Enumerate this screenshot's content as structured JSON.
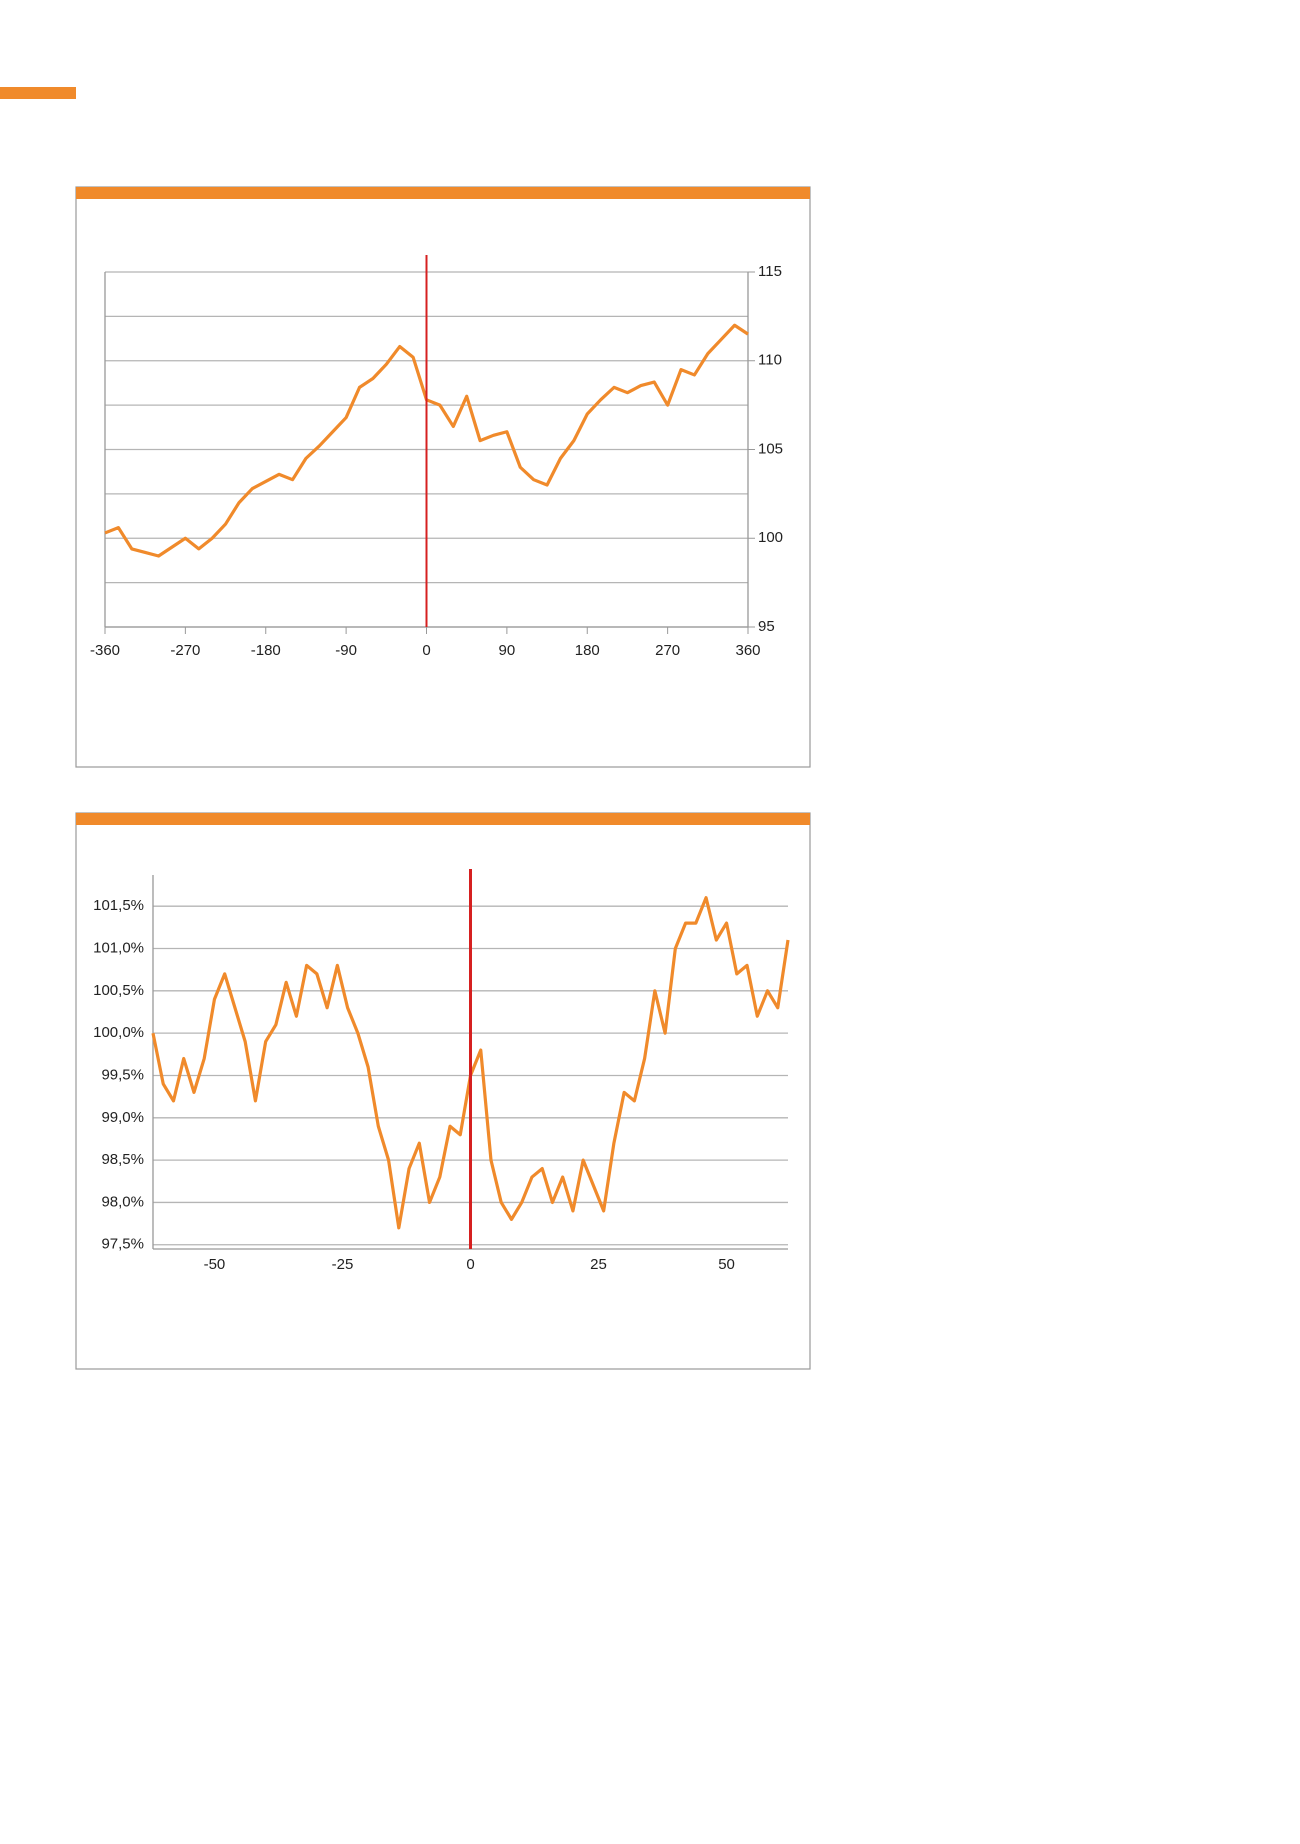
{
  "chart_data": [
    {
      "type": "line",
      "color": "#f08a2b",
      "vline": 0,
      "vline_color": "#d62020",
      "y_axis_side": "right",
      "grid": true,
      "xlim": [
        -360,
        360
      ],
      "xticks": [
        -360,
        -270,
        -180,
        -90,
        0,
        90,
        180,
        270,
        360
      ],
      "ylim": [
        95,
        115
      ],
      "yticks": [
        95,
        100,
        105,
        110,
        115
      ],
      "minor_yticks": [
        97.5,
        102.5,
        107.5,
        112.5
      ],
      "series": [
        {
          "x": [
            -360,
            -345,
            -330,
            -315,
            -300,
            -285,
            -270,
            -255,
            -240,
            -225,
            -210,
            -195,
            -180,
            -165,
            -150,
            -135,
            -120,
            -105,
            -90,
            -75,
            -60,
            -45,
            -30,
            -15,
            0,
            15,
            30,
            45,
            60,
            75,
            90,
            105,
            120,
            135,
            150,
            165,
            180,
            195,
            210,
            225,
            240,
            255,
            270,
            285,
            300,
            315,
            330,
            345,
            360
          ],
          "values": [
            100.3,
            100.6,
            99.4,
            99.2,
            99.0,
            99.5,
            100.0,
            99.4,
            100.0,
            100.8,
            102.0,
            102.8,
            103.2,
            103.6,
            103.3,
            104.5,
            105.2,
            106.0,
            106.8,
            108.5,
            109.0,
            109.8,
            110.8,
            110.2,
            107.8,
            107.5,
            106.3,
            108.0,
            105.5,
            105.8,
            106.0,
            104.0,
            103.3,
            103.0,
            104.5,
            105.5,
            107.0,
            107.8,
            108.5,
            108.2,
            108.6,
            108.8,
            107.5,
            109.5,
            109.2,
            110.4,
            111.2,
            112.0,
            111.5
          ]
        }
      ]
    },
    {
      "type": "line",
      "color": "#f08a2b",
      "vline": 0,
      "vline_color": "#d62020",
      "y_axis_side": "left",
      "grid": true,
      "xlim": [
        -62,
        62
      ],
      "xticks": [
        -50,
        -25,
        0,
        25,
        50
      ],
      "ylim": [
        97.45,
        101.75
      ],
      "yticks": [
        {
          "value": 97.5,
          "label": "97,5%"
        },
        {
          "value": 98,
          "label": "98,0%"
        },
        {
          "value": 98.5,
          "label": "98,5%"
        },
        {
          "value": 99,
          "label": "99,0%"
        },
        {
          "value": 99.5,
          "label": "99,5%"
        },
        {
          "value": 100,
          "label": "100,0%"
        },
        {
          "value": 100.5,
          "label": "100,5%"
        },
        {
          "value": 101,
          "label": "101,0%"
        },
        {
          "value": 101.5,
          "label": "101,5%"
        }
      ],
      "series": [
        {
          "x": [
            -62,
            -60,
            -58,
            -56,
            -54,
            -52,
            -50,
            -48,
            -46,
            -44,
            -42,
            -40,
            -38,
            -36,
            -34,
            -32,
            -30,
            -28,
            -26,
            -24,
            -22,
            -20,
            -18,
            -16,
            -14,
            -12,
            -10,
            -8,
            -6,
            -4,
            -2,
            0,
            2,
            4,
            6,
            8,
            10,
            12,
            14,
            16,
            18,
            20,
            22,
            24,
            26,
            28,
            30,
            32,
            34,
            36,
            38,
            40,
            42,
            44,
            46,
            48,
            50,
            52,
            54,
            56,
            58,
            60,
            62
          ],
          "values": [
            100.0,
            99.4,
            99.2,
            99.7,
            99.3,
            99.7,
            100.4,
            100.7,
            100.3,
            99.9,
            99.2,
            99.9,
            100.1,
            100.6,
            100.2,
            100.8,
            100.7,
            100.3,
            100.8,
            100.3,
            100.0,
            99.6,
            98.9,
            98.5,
            97.7,
            98.4,
            98.7,
            98.0,
            98.3,
            98.9,
            98.8,
            99.5,
            99.8,
            98.5,
            98.0,
            97.8,
            98.0,
            98.3,
            98.4,
            98.0,
            98.3,
            97.9,
            98.5,
            98.2,
            97.9,
            98.7,
            99.3,
            99.2,
            99.7,
            100.5,
            100.0,
            101.0,
            101.3,
            101.3,
            101.6,
            101.1,
            101.3,
            100.7,
            100.8,
            100.2,
            100.5,
            100.3,
            101.1
          ]
        }
      ]
    }
  ]
}
